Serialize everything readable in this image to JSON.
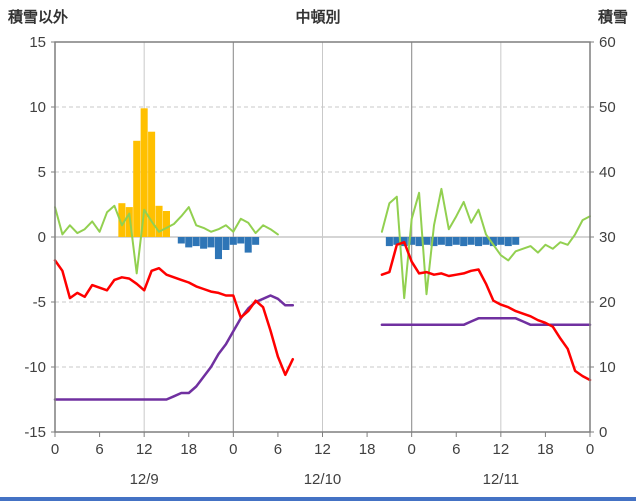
{
  "header": {
    "left_axis_title": "積雪以外",
    "title": "中頓別",
    "right_axis_title": "積雪"
  },
  "colors": {
    "background": "#FFFFFF",
    "bottom_bar": "#4472C4"
  },
  "chart_data": {
    "type": "line",
    "title": "中頓別",
    "left_axis": {
      "label": "積雪以外",
      "min": -15,
      "max": 15,
      "ticks": [
        15,
        10,
        5,
        0,
        -5,
        -10,
        -15
      ]
    },
    "right_axis": {
      "label": "積雪",
      "min": 0,
      "max": 60,
      "ticks": [
        60,
        50,
        40,
        30,
        20,
        10,
        0
      ]
    },
    "x_axis": {
      "hours_total": 72,
      "tick_interval_hours": 6,
      "tick_labels": [
        "0",
        "6",
        "12",
        "18",
        "0",
        "6",
        "12",
        "18",
        "0",
        "6",
        "12",
        "18",
        "0"
      ],
      "date_labels": [
        {
          "label": "12/9",
          "hour": 12
        },
        {
          "label": "12/10",
          "hour": 36
        },
        {
          "label": "12/11",
          "hour": 60
        }
      ]
    },
    "grid": {
      "h_dashed": [
        10,
        5,
        -5,
        -10
      ],
      "h_solid": [
        0
      ],
      "v_minor_hours": [
        12,
        36,
        60
      ],
      "v_major_hours": [
        24,
        48
      ]
    },
    "colors": {
      "grid": "#C9C9C9",
      "grid_zero": "#ABABAB",
      "grid_major": "#9A9A9A",
      "frame": "#7F7F7F",
      "text": "#404040"
    },
    "series": [
      {
        "name": "orange-bars",
        "type": "bar",
        "axis": "left",
        "color": "#FFC000",
        "points": [
          [
            9,
            2.6
          ],
          [
            10,
            2.3
          ],
          [
            11,
            7.4
          ],
          [
            12,
            9.9
          ],
          [
            13,
            8.1
          ],
          [
            14,
            2.4
          ],
          [
            15,
            2.0
          ]
        ]
      },
      {
        "name": "blue-bars",
        "type": "bar",
        "axis": "left",
        "color": "#2E75B6",
        "points": [
          [
            17,
            -0.5
          ],
          [
            18,
            -0.8
          ],
          [
            19,
            -0.7
          ],
          [
            20,
            -0.9
          ],
          [
            21,
            -0.8
          ],
          [
            22,
            -1.7
          ],
          [
            23,
            -1.0
          ],
          [
            24,
            -0.6
          ],
          [
            25,
            -0.5
          ],
          [
            26,
            -1.2
          ],
          [
            27,
            -0.6
          ],
          [
            45,
            -0.7
          ],
          [
            46,
            -0.6
          ],
          [
            47,
            -0.7
          ],
          [
            48,
            -0.6
          ],
          [
            49,
            -0.7
          ],
          [
            50,
            -0.6
          ],
          [
            51,
            -0.7
          ],
          [
            52,
            -0.6
          ],
          [
            53,
            -0.7
          ],
          [
            54,
            -0.6
          ],
          [
            55,
            -0.7
          ],
          [
            56,
            -0.6
          ],
          [
            57,
            -0.7
          ],
          [
            58,
            -0.6
          ],
          [
            59,
            -0.7
          ],
          [
            60,
            -0.6
          ],
          [
            61,
            -0.7
          ],
          [
            62,
            -0.6
          ]
        ]
      },
      {
        "name": "green-line",
        "type": "line",
        "axis": "left",
        "color": "#92D050",
        "width": 2,
        "values": [
          2.3,
          0.2,
          0.9,
          0.3,
          0.6,
          1.2,
          0.4,
          1.9,
          2.4,
          0.9,
          1.8,
          -2.8,
          2.1,
          1.2,
          0.4,
          0.7,
          1.0,
          1.6,
          2.3,
          0.9,
          0.7,
          0.4,
          0.6,
          0.9,
          0.4,
          1.4,
          1.1,
          0.3,
          0.9,
          0.6,
          0.2,
          null,
          null,
          null,
          null,
          null,
          null,
          null,
          null,
          null,
          null,
          null,
          null,
          null,
          0.4,
          2.6,
          3.1,
          -4.7,
          1.4,
          3.4,
          -4.4,
          0.9,
          3.7,
          0.6,
          1.6,
          2.7,
          1.1,
          2.1,
          0.2,
          -0.6,
          -1.4,
          -1.8,
          -1.1,
          -0.9,
          -0.7,
          -1.2,
          -0.6,
          -0.9,
          -0.4,
          -0.6,
          0.2,
          1.3,
          1.6
        ]
      },
      {
        "name": "purple-line",
        "type": "line",
        "axis": "right",
        "color": "#7030A0",
        "width": 2.5,
        "values": [
          5,
          5,
          5,
          5,
          5,
          5,
          5,
          5,
          5,
          5,
          5,
          5,
          5,
          5,
          5,
          5,
          5.5,
          6,
          6,
          7,
          8.5,
          10,
          12,
          13.5,
          15.5,
          17.5,
          19,
          20,
          20.5,
          21,
          20.5,
          19.5,
          19.5,
          null,
          null,
          null,
          null,
          null,
          null,
          null,
          null,
          null,
          null,
          null,
          16.5,
          16.5,
          16.5,
          16.5,
          16.5,
          16.5,
          16.5,
          16.5,
          16.5,
          16.5,
          16.5,
          16.5,
          17,
          17.5,
          17.5,
          17.5,
          17.5,
          17.5,
          17.5,
          17,
          16.5,
          16.5,
          16.5,
          16.5,
          16.5,
          16.5,
          16.5,
          16.5,
          16.5
        ]
      },
      {
        "name": "red-line",
        "type": "line",
        "axis": "left",
        "color": "#FF0000",
        "width": 2.5,
        "values": [
          -1.8,
          -2.6,
          -4.7,
          -4.3,
          -4.6,
          -3.7,
          -3.9,
          -4.1,
          -3.3,
          -3.1,
          -3.2,
          -3.6,
          -4.1,
          -2.6,
          -2.4,
          -2.9,
          -3.1,
          -3.3,
          -3.5,
          -3.8,
          -4.0,
          -4.2,
          -4.3,
          -4.5,
          -4.5,
          -6.2,
          -5.7,
          -4.9,
          -5.4,
          -7.2,
          -9.2,
          -10.6,
          -9.4,
          null,
          null,
          null,
          null,
          null,
          null,
          null,
          null,
          null,
          null,
          null,
          -2.9,
          -2.7,
          -0.6,
          -0.4,
          -1.9,
          -2.8,
          -2.7,
          -2.9,
          -2.8,
          -3.0,
          -2.9,
          -2.8,
          -2.6,
          -2.5,
          -3.6,
          -4.9,
          -5.2,
          -5.4,
          -5.7,
          -5.9,
          -6.1,
          -6.4,
          -6.6,
          -6.9,
          -7.8,
          -8.6,
          -10.3,
          -10.7,
          -11.0
        ]
      }
    ]
  }
}
